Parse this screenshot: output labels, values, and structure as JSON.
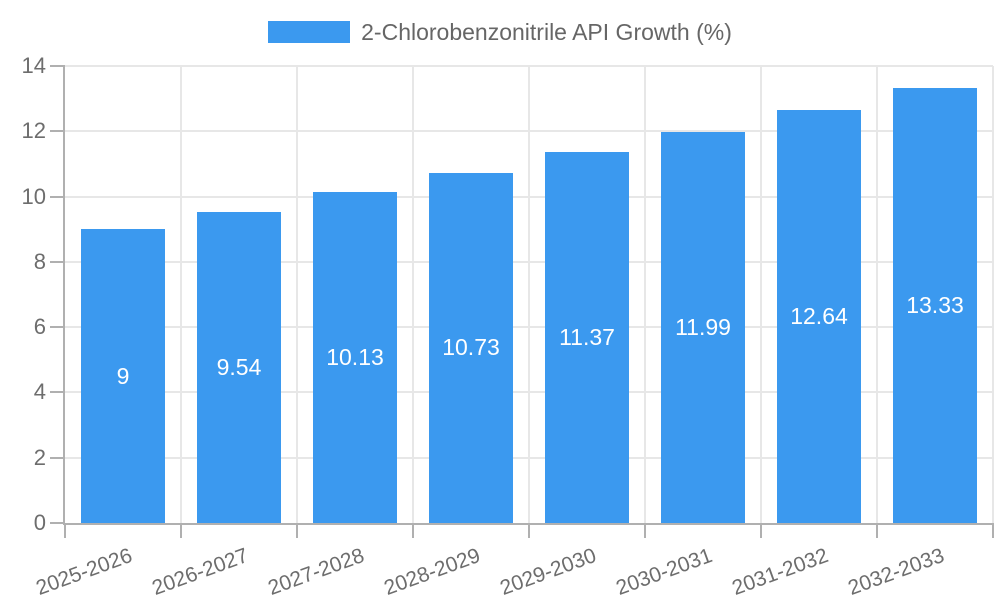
{
  "legend": {
    "label": "2-Chlorobenzonitrile API Growth (%)"
  },
  "chart_data": {
    "type": "bar",
    "title": "",
    "xlabel": "",
    "ylabel": "",
    "categories": [
      "2025-2026",
      "2026-2027",
      "2027-2028",
      "2028-2029",
      "2029-2030",
      "2030-2031",
      "2031-2032",
      "2032-2033"
    ],
    "series": [
      {
        "name": "2-Chlorobenzonitrile API Growth (%)",
        "values": [
          9,
          9.54,
          10.13,
          10.73,
          11.37,
          11.99,
          12.64,
          13.33
        ]
      }
    ],
    "data_labels": [
      "9",
      "9.54",
      "10.13",
      "10.73",
      "11.37",
      "11.99",
      "12.64",
      "13.33"
    ],
    "ylim": [
      0,
      14
    ],
    "yticks": [
      0,
      2,
      4,
      6,
      8,
      10,
      12,
      14
    ],
    "grid": true,
    "legend_position": "top",
    "bar_color": "#3b99ef",
    "data_label_color": "#ffffff",
    "grid_color": "#e7e7e7",
    "axis_color": "#b0b0b0",
    "tick_label_color": "#6d6d6d",
    "legend_text_color": "#666666"
  }
}
